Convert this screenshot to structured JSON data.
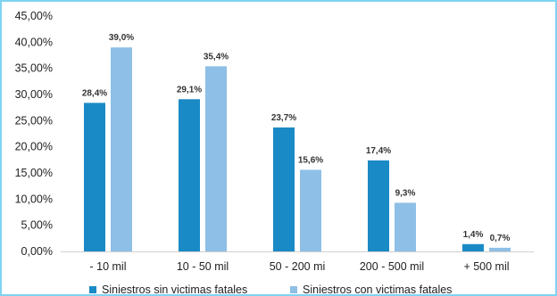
{
  "chart_data": {
    "type": "bar",
    "categories": [
      "- 10 mil",
      "10 - 50 mil",
      "50 - 200 mi",
      "200 - 500 mil",
      "+ 500 mil"
    ],
    "series": [
      {
        "name": "Siniestros sin victimas fatales",
        "values": [
          28.4,
          29.1,
          23.7,
          17.4,
          1.4
        ],
        "labels": [
          "28,4%",
          "29,1%",
          "23,7%",
          "17,4%",
          "1,4%"
        ],
        "color": "#1a8ac6"
      },
      {
        "name": "Siniestros con victimas fatales",
        "values": [
          39.0,
          35.4,
          15.6,
          9.3,
          0.7
        ],
        "labels": [
          "39,0%",
          "35,4%",
          "15,6%",
          "9,3%",
          "0,7%"
        ],
        "color": "#8ebfe6"
      }
    ],
    "y_ticks": [
      "0,00%",
      "5,00%",
      "10,00%",
      "15,00%",
      "20,00%",
      "25,00%",
      "30,00%",
      "35,00%",
      "40,00%",
      "45,00%"
    ],
    "ylim": [
      0,
      45
    ],
    "y_tick_step": 5,
    "grid": false,
    "legend_position": "bottom",
    "title": "",
    "xlabel": "",
    "ylabel": ""
  }
}
